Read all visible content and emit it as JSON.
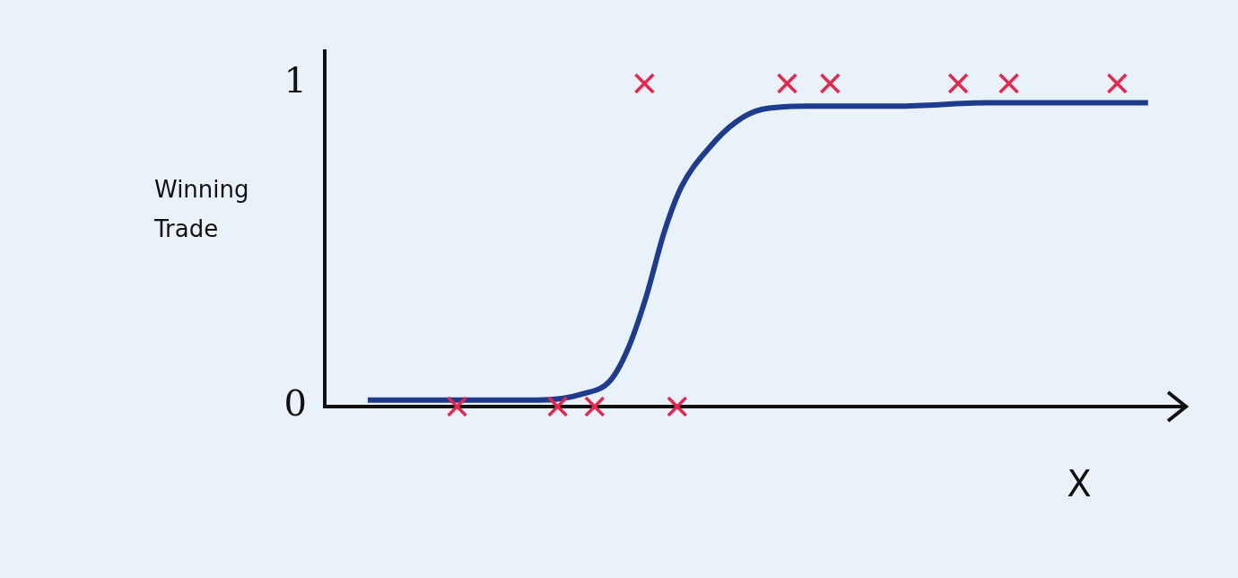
{
  "chart_data": {
    "type": "scatter",
    "y_label": "Winning Trade",
    "x_label": "X",
    "xlim": [
      0,
      10
    ],
    "ylim": [
      0,
      1.1
    ],
    "yticks": [
      0,
      1
    ],
    "tick_labels": "y",
    "grid": false,
    "series": [
      {
        "type": "scatter",
        "color": "#e8254f",
        "marker": "x",
        "x": [
          1.54,
          2.71,
          3.14,
          4.1,
          3.72,
          5.38,
          5.88,
          7.37,
          7.96,
          9.22
        ],
        "values": [
          0,
          0,
          0,
          0,
          1,
          1,
          1,
          1,
          1,
          1
        ]
      },
      {
        "type": "line",
        "color": "#1d3c8f",
        "line_style": "solid",
        "x": [
          0.5,
          1.44,
          2.48,
          3.01,
          3.32,
          3.53,
          3.74,
          3.95,
          4.15,
          4.47,
          4.78,
          5.09,
          5.62,
          6.66,
          7.7,
          9.58
        ],
        "values": [
          0.02,
          0.02,
          0.02,
          0.04,
          0.08,
          0.18,
          0.34,
          0.54,
          0.68,
          0.8,
          0.88,
          0.92,
          0.93,
          0.93,
          0.94,
          0.94
        ]
      }
    ]
  }
}
